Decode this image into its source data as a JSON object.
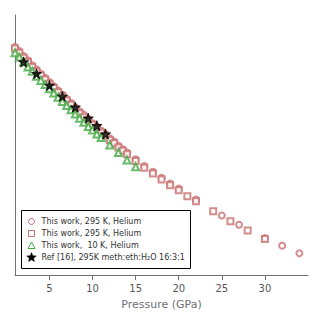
{
  "chart_data": {
    "type": "scatter",
    "xlabel": "Pressure (GPa)",
    "xlim": [
      1,
      35
    ],
    "ylim": [
      5.6,
      8.7
    ],
    "xticks": [
      5,
      10,
      15,
      20,
      25,
      30
    ],
    "grid": false,
    "tick_labels": "x",
    "legend": "lower left",
    "series": [
      {
        "name": "This work, 295 K, Helium",
        "color": "#c87070",
        "marker": "circle",
        "x": [
          1.0,
          1.5,
          2.0,
          2.5,
          3.0,
          3.5,
          4.0,
          4.5,
          5.0,
          5.5,
          6.0,
          6.5,
          7.0,
          7.5,
          8.0,
          8.5,
          9.0,
          9.5,
          10.0,
          10.5,
          11.0,
          11.5,
          12.0,
          12.5,
          13.0,
          13.5,
          14.0,
          15.0,
          16.0,
          17.0,
          18.0,
          19.0,
          20.0,
          22.0,
          25.0,
          27.0,
          30.0,
          32.0,
          34.0
        ],
        "values": [
          8.32,
          8.27,
          8.21,
          8.16,
          8.1,
          8.05,
          8.0,
          7.95,
          7.9,
          7.85,
          7.8,
          7.75,
          7.7,
          7.65,
          7.6,
          7.55,
          7.51,
          7.46,
          7.41,
          7.37,
          7.32,
          7.28,
          7.23,
          7.19,
          7.14,
          7.1,
          7.06,
          6.98,
          6.9,
          6.83,
          6.76,
          6.69,
          6.63,
          6.5,
          6.31,
          6.2,
          6.04,
          5.95,
          5.86
        ]
      },
      {
        "name": "This work, 295 K, Helium",
        "color": "#c87070",
        "marker": "square",
        "x": [
          1.0,
          1.5,
          2.0,
          2.5,
          3.0,
          3.5,
          4.0,
          4.5,
          5.0,
          5.5,
          6.0,
          6.5,
          7.0,
          7.5,
          8.0,
          8.5,
          9.0,
          9.5,
          10.0,
          10.5,
          11.0,
          11.5,
          12.0,
          12.5,
          13.0,
          13.5,
          14.0,
          15.0,
          16.0,
          17.0,
          18.0,
          19.0,
          20.0,
          21.0,
          22.0,
          24.0,
          26.0,
          28.0,
          30.0
        ],
        "values": [
          8.3,
          8.25,
          8.19,
          8.14,
          8.08,
          8.03,
          7.98,
          7.93,
          7.88,
          7.83,
          7.78,
          7.73,
          7.68,
          7.63,
          7.58,
          7.53,
          7.48,
          7.44,
          7.39,
          7.35,
          7.3,
          7.26,
          7.21,
          7.17,
          7.12,
          7.08,
          7.04,
          6.96,
          6.88,
          6.81,
          6.74,
          6.67,
          6.61,
          6.54,
          6.48,
          6.36,
          6.24,
          6.13,
          6.03
        ]
      },
      {
        "name": "This work,  10 K, Helium",
        "color": "#44aa44",
        "marker": "triangle",
        "x": [
          1.0,
          1.5,
          2.0,
          2.5,
          3.0,
          3.5,
          4.0,
          4.5,
          5.0,
          5.5,
          6.0,
          6.5,
          7.0,
          7.5,
          8.0,
          8.5,
          9.0,
          9.5,
          10.0,
          10.5,
          11.0,
          12.0,
          13.0,
          14.0,
          15.0
        ],
        "values": [
          8.25,
          8.2,
          8.14,
          8.08,
          8.03,
          7.97,
          7.92,
          7.87,
          7.82,
          7.77,
          7.72,
          7.67,
          7.62,
          7.57,
          7.52,
          7.47,
          7.42,
          7.37,
          7.33,
          7.28,
          7.24,
          7.15,
          7.06,
          6.97,
          6.89
        ]
      },
      {
        "name": "Ref [16], 295K meth:eth:H₂O 16:3:1",
        "color": "#000000",
        "marker": "star",
        "x": [
          2.0,
          3.5,
          5.0,
          6.5,
          8.0,
          9.5,
          10.5,
          11.5
        ],
        "values": [
          8.14,
          8.0,
          7.86,
          7.73,
          7.6,
          7.47,
          7.38,
          7.28
        ]
      }
    ]
  }
}
